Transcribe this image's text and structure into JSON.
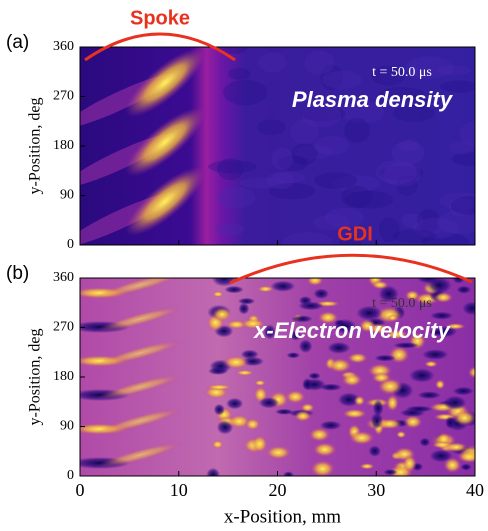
{
  "chart_data": [
    {
      "type": "heatmap",
      "panel_label": "(a)",
      "annotation": "Spoke",
      "time_label": "t = 50.0 μs",
      "title": "Plasma density",
      "ylabel": "y-Position, deg",
      "xlim": [
        0,
        40
      ],
      "xticks": [
        0,
        10,
        20,
        30,
        40
      ],
      "ylim": [
        0,
        360
      ],
      "yticks": [
        0,
        90,
        180,
        270,
        360
      ]
    },
    {
      "type": "heatmap",
      "panel_label": "(b)",
      "annotation": "GDI",
      "time_label": "t = 50.0 μs",
      "title": "x-Electron velocity",
      "xlabel": "x-Position, mm",
      "ylabel": "y-Position, deg",
      "xlim": [
        0,
        40
      ],
      "xticks": [
        0,
        10,
        20,
        30,
        40
      ],
      "ylim": [
        0,
        360
      ],
      "yticks": [
        0,
        90,
        180,
        270,
        360
      ]
    }
  ]
}
